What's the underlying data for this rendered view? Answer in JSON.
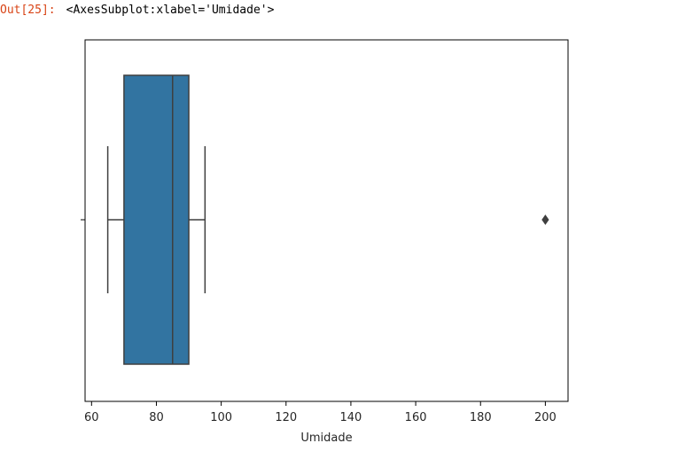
{
  "output": {
    "prompt": "Out[25]:",
    "text": "<AxesSubplot:xlabel='Umidade'>"
  },
  "chart_data": {
    "type": "box",
    "title": "",
    "xlabel": "Umidade",
    "ylabel": "",
    "xlim": [
      58,
      207
    ],
    "xticks": [
      60,
      80,
      100,
      120,
      140,
      160,
      180,
      200
    ],
    "grid": false,
    "box": {
      "whisker_low": 65,
      "q1": 70,
      "median": 85,
      "q3": 90,
      "whisker_high": 95,
      "outliers": [
        200
      ]
    },
    "colors": {
      "box_fill": "#3274a1",
      "lines": "#3f3f3f"
    }
  }
}
